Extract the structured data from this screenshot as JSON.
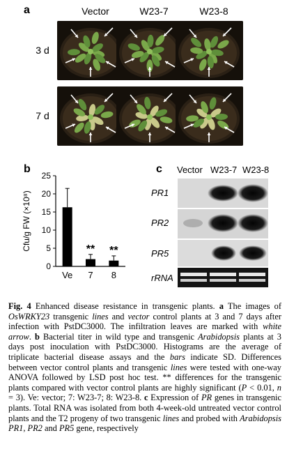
{
  "panel_a": {
    "letter": "a",
    "columns": [
      "Vector",
      "W23-7",
      "W23-8"
    ],
    "rows": [
      "3 d",
      "7 d"
    ]
  },
  "panel_b": {
    "letter": "b",
    "ylabel": "Cfu/g FW (×10⁸)",
    "significance_marks": [
      "**",
      "**"
    ]
  },
  "panel_c": {
    "letter": "c",
    "lanes": [
      "Vector",
      "W23-7",
      "W23-8"
    ],
    "genes": [
      "PR1",
      "PR2",
      "PR5",
      "rRNA"
    ]
  },
  "chart_data": {
    "type": "bar",
    "categories": [
      "Ve",
      "7",
      "8"
    ],
    "values": [
      16.3,
      2.0,
      1.6
    ],
    "errors": [
      5.2,
      1.3,
      1.3
    ],
    "ylim": [
      0,
      25
    ],
    "yticks": [
      0,
      5,
      10,
      15,
      20,
      25
    ],
    "xlabel": "",
    "ylabel": "Cfu/g FW (×10⁸)",
    "annotations": [
      "",
      "**",
      "**"
    ],
    "grid": false
  },
  "caption": {
    "fig_num": "Fig. 4",
    "text_parts": [
      " Enhanced disease resistance in transgenic plants. ",
      "a",
      " The images of ",
      "OsWRKY23",
      " transgenic ",
      "lines",
      " and ",
      "vector",
      " control plants at 3 and 7 days after infection with PstDC3000. The infiltration leaves are marked with ",
      "white arrow",
      ". ",
      "b",
      " Bacterial titer in wild type and transgenic ",
      "Arabidopsis",
      " plants at 3 days post inoculation with PstDC3000. Histograms are the average of triplicate bacterial disease assays and the ",
      "bars",
      " indicate SD. Differences between vector control plants and transgenic ",
      "lines",
      " were tested with one-way ANOVA followed by LSD post hoc test. ** differences for the transgenic plants compared with vector control plants are highly significant (",
      "P",
      " < 0.01, ",
      "n",
      " = 3). Ve: vector; 7: W23-7; 8: W23-8. ",
      "c",
      " Expression of ",
      "PR",
      " genes in transgenic plants. Total RNA was isolated from both 4-week-old untreated vector control plants and the T2 progeny of two transgenic ",
      "lines",
      " and probed with ",
      "Arabidopsis PR1",
      ", ",
      "PR2",
      " and ",
      "PR5",
      " gene, respectively"
    ]
  }
}
